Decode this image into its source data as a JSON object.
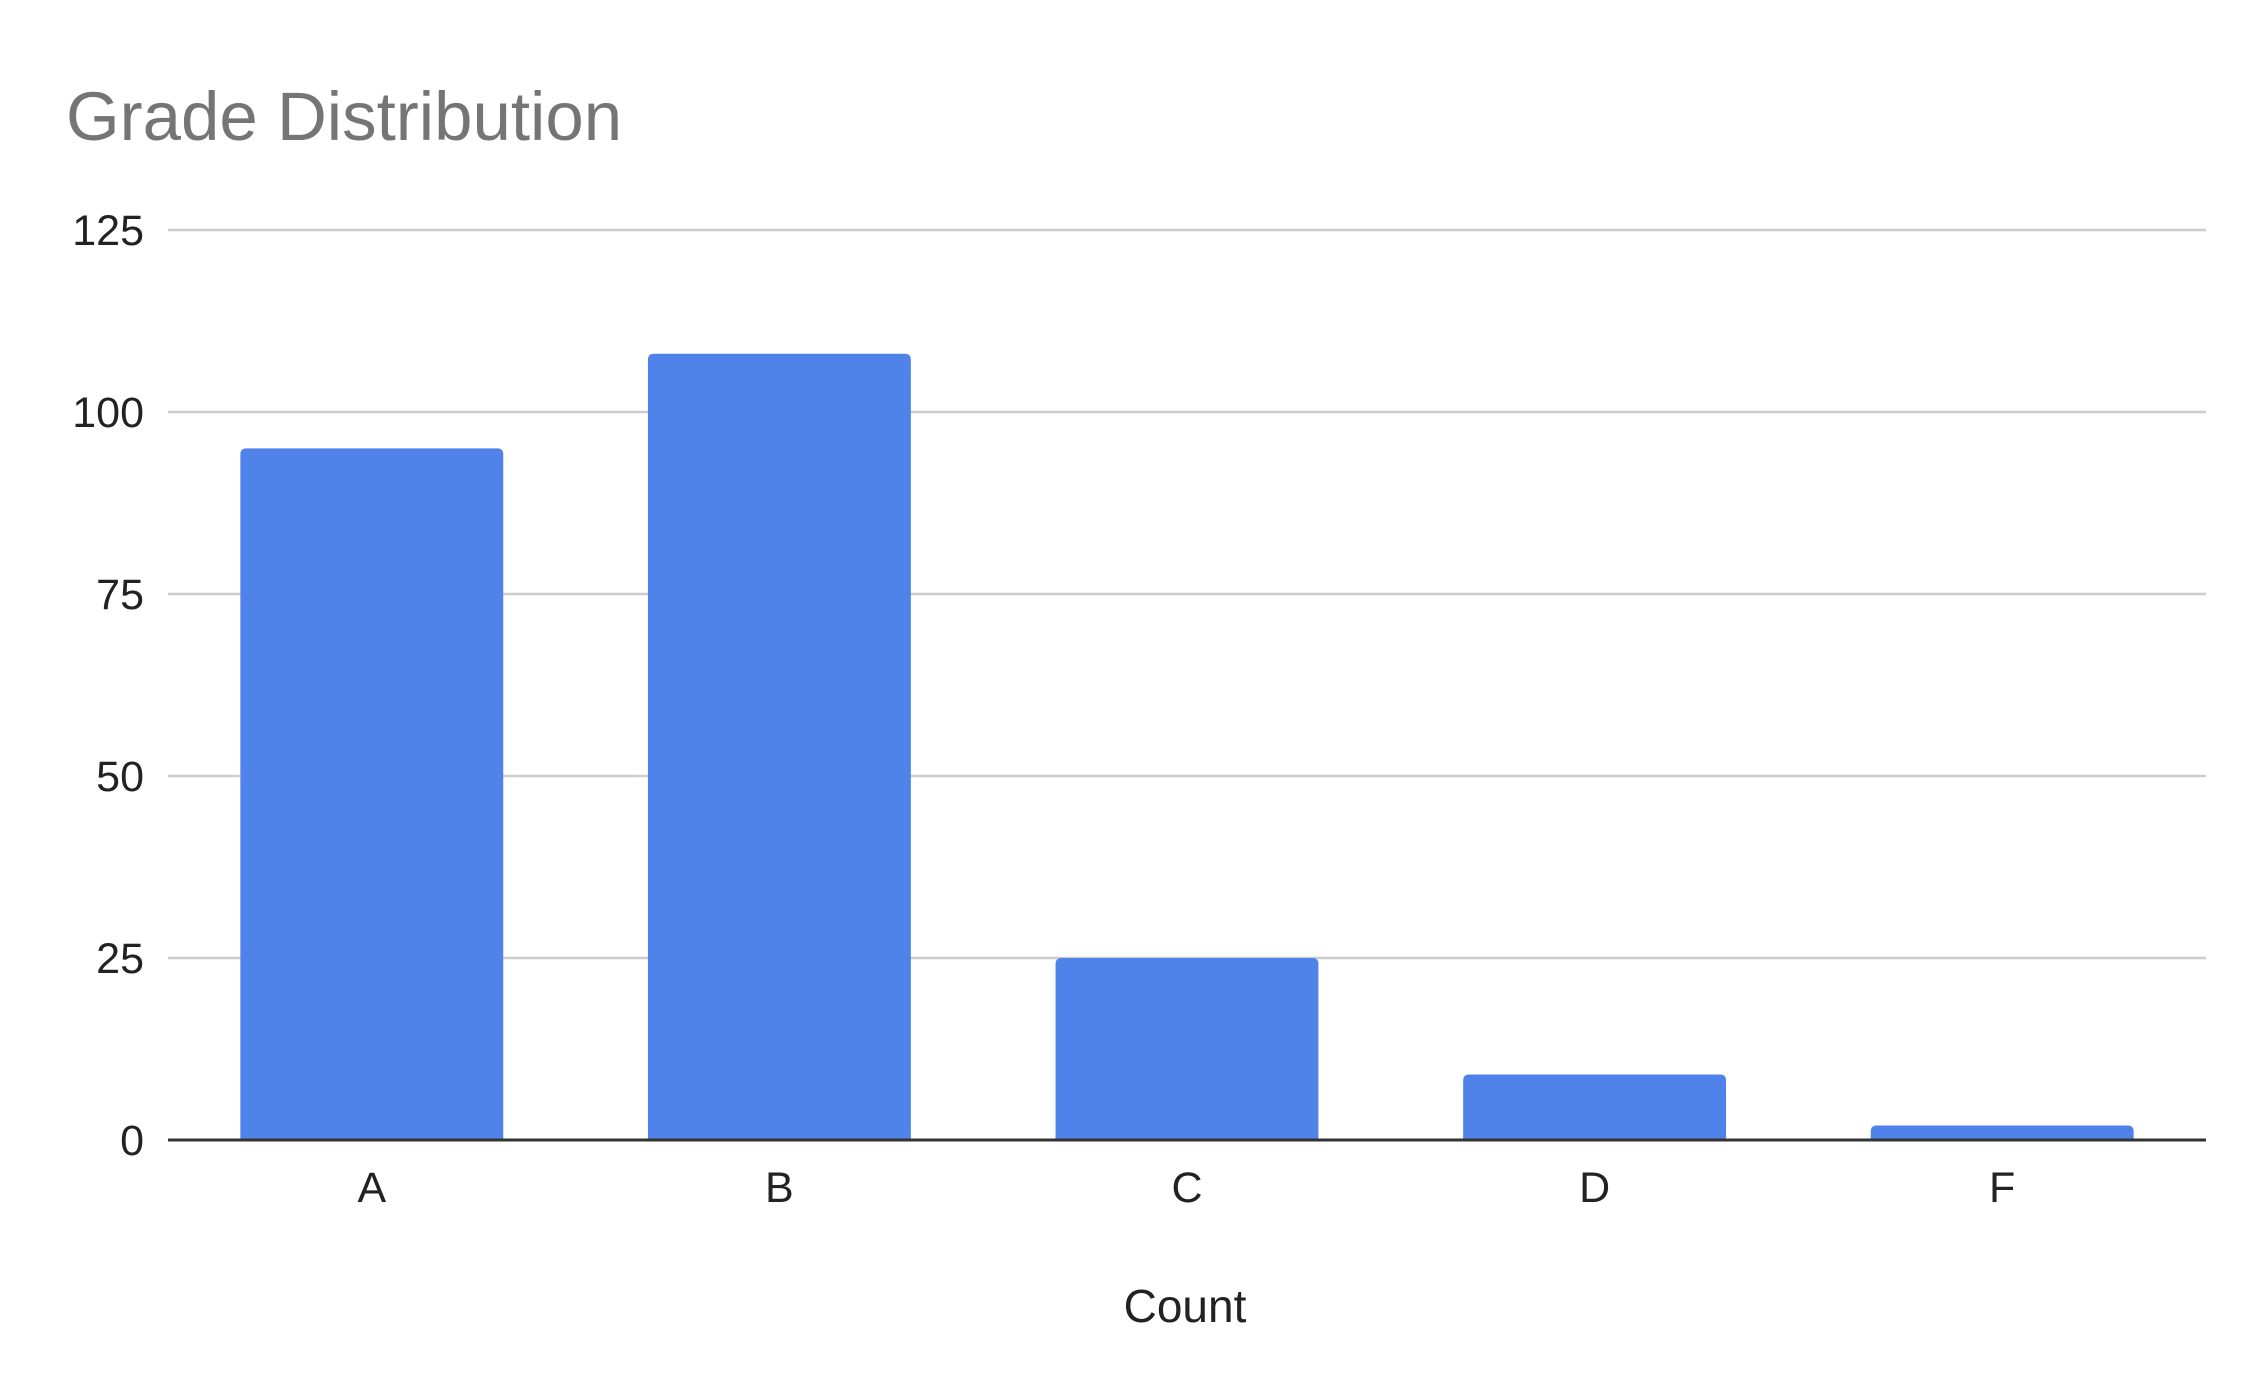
{
  "chart_data": {
    "type": "bar",
    "title": "Grade Distribution",
    "xlabel": "Count",
    "ylabel": "",
    "categories": [
      "A",
      "B",
      "C",
      "D",
      "F"
    ],
    "values": [
      95,
      108,
      25,
      9,
      2
    ],
    "ylim": [
      0,
      125
    ],
    "yticks": [
      0,
      25,
      50,
      75,
      100,
      125
    ],
    "grid": true,
    "legend": "none",
    "colors": {
      "bar": "#5083ea",
      "grid": "#cccccc",
      "axis": "#333333",
      "title": "#757575",
      "text": "#222222"
    }
  }
}
